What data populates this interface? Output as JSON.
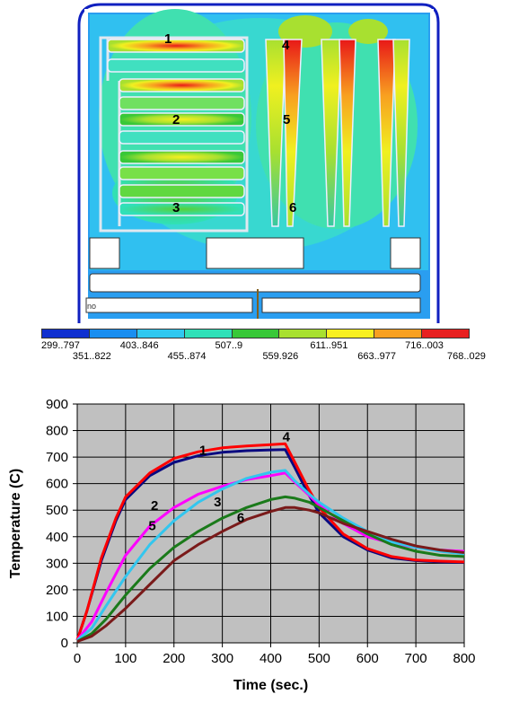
{
  "contour": {
    "region_labels": [
      "1",
      "2",
      "3",
      "4",
      "5",
      "6"
    ],
    "probe_text": "no"
  },
  "legend": {
    "colors": [
      "#1030d0",
      "#1a8ef0",
      "#30c8f0",
      "#30e0b8",
      "#38c838",
      "#a8e030",
      "#f8f020",
      "#f8a020",
      "#e82020"
    ],
    "labels": [
      "299..797",
      "351..822",
      "403..846",
      "455..874",
      "507..9",
      "559.926",
      "611..951",
      "663..977",
      "716..003",
      "768..029"
    ]
  },
  "chart_data": {
    "type": "line",
    "xlabel": "Time (sec.)",
    "ylabel": "Temperature (C)",
    "xlim": [
      0,
      800
    ],
    "ylim": [
      0,
      900
    ],
    "xticks": [
      "0",
      "100",
      "200",
      "300",
      "400",
      "500",
      "600",
      "700",
      "800"
    ],
    "yticks": [
      "0",
      "100",
      "200",
      "300",
      "400",
      "500",
      "600",
      "700",
      "800",
      "900"
    ],
    "grid": true,
    "legend": "none",
    "series": [
      {
        "name": "1",
        "color": "#0a0a80",
        "x": [
          0,
          20,
          50,
          80,
          100,
          150,
          200,
          250,
          300,
          350,
          400,
          430,
          450,
          475,
          500,
          550,
          600,
          650,
          700,
          750,
          800
        ],
        "y": [
          10,
          120,
          310,
          460,
          540,
          630,
          680,
          705,
          718,
          724,
          727,
          728,
          660,
          570,
          490,
          400,
          350,
          320,
          310,
          305,
          303
        ]
      },
      {
        "name": "4",
        "color": "#ff0000",
        "x": [
          0,
          20,
          50,
          80,
          100,
          150,
          200,
          250,
          300,
          350,
          400,
          430,
          450,
          475,
          500,
          550,
          600,
          650,
          700,
          750,
          800
        ],
        "y": [
          10,
          120,
          320,
          470,
          550,
          640,
          695,
          720,
          735,
          742,
          747,
          750,
          680,
          590,
          510,
          410,
          355,
          325,
          312,
          308,
          305
        ]
      },
      {
        "name": "2",
        "color": "#ff00ff",
        "x": [
          0,
          30,
          60,
          100,
          150,
          200,
          250,
          300,
          350,
          400,
          430,
          450,
          480,
          500,
          550,
          600,
          650,
          700,
          750,
          800
        ],
        "y": [
          10,
          80,
          190,
          330,
          440,
          510,
          560,
          590,
          615,
          630,
          640,
          605,
          555,
          520,
          450,
          400,
          375,
          360,
          350,
          345
        ]
      },
      {
        "name": "5",
        "color": "#33c6ee",
        "x": [
          0,
          30,
          60,
          100,
          150,
          200,
          250,
          300,
          350,
          400,
          430,
          450,
          480,
          500,
          550,
          600,
          650,
          700,
          750,
          800
        ],
        "y": [
          10,
          55,
          140,
          250,
          370,
          460,
          530,
          580,
          620,
          643,
          650,
          610,
          560,
          530,
          470,
          420,
          380,
          360,
          345,
          335
        ]
      },
      {
        "name": "3",
        "color": "#1a7a1a",
        "x": [
          0,
          30,
          60,
          100,
          150,
          200,
          250,
          300,
          350,
          400,
          430,
          450,
          480,
          500,
          550,
          600,
          650,
          700,
          750,
          800
        ],
        "y": [
          5,
          35,
          90,
          180,
          280,
          360,
          420,
          470,
          510,
          540,
          550,
          545,
          530,
          510,
          460,
          410,
          370,
          345,
          330,
          325
        ]
      },
      {
        "name": "6",
        "color": "#7a1a1a",
        "x": [
          0,
          30,
          60,
          100,
          150,
          200,
          250,
          300,
          350,
          400,
          430,
          450,
          480,
          500,
          550,
          600,
          650,
          700,
          750,
          800
        ],
        "y": [
          5,
          25,
          65,
          130,
          220,
          310,
          370,
          420,
          465,
          495,
          510,
          510,
          500,
          490,
          450,
          420,
          390,
          365,
          350,
          340
        ]
      }
    ],
    "label_positions": [
      {
        "text": "1",
        "x": 260,
        "y": 708
      },
      {
        "text": "4",
        "x": 432,
        "y": 760
      },
      {
        "text": "2",
        "x": 160,
        "y": 500
      },
      {
        "text": "5",
        "x": 155,
        "y": 425
      },
      {
        "text": "3",
        "x": 290,
        "y": 515
      },
      {
        "text": "6",
        "x": 338,
        "y": 455
      }
    ]
  }
}
